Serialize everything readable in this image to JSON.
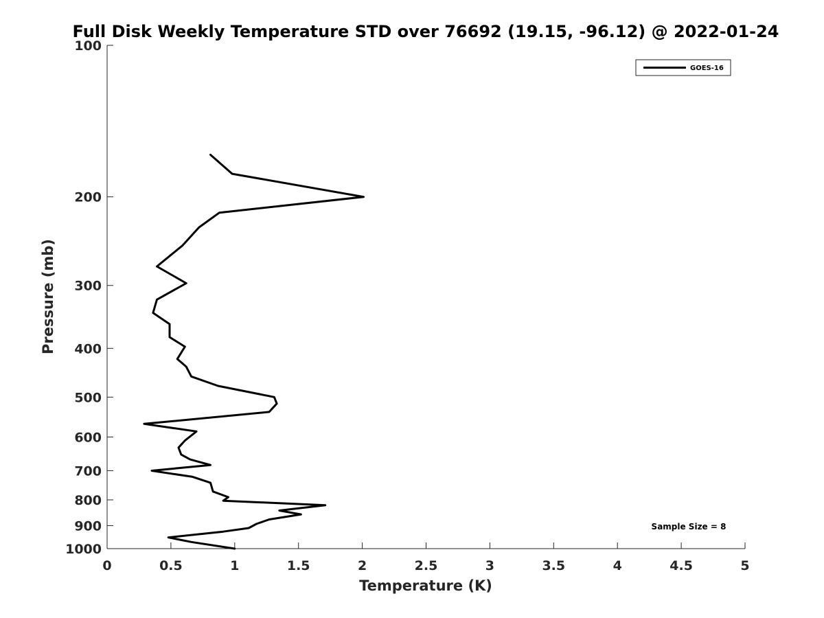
{
  "chart_data": {
    "type": "line",
    "title": "Full Disk Weekly Temperature STD over 76692 (19.15, -96.12) @ 2022-01-24",
    "xlabel": "Temperature (K)",
    "ylabel": "Pressure (mb)",
    "xlim": [
      0,
      5
    ],
    "ylim": [
      100,
      1000
    ],
    "y_scale": "log",
    "y_reversed": true,
    "x_ticks": [
      "0",
      "0.5",
      "1",
      "1.5",
      "2",
      "2.5",
      "3",
      "3.5",
      "4",
      "4.5",
      "5"
    ],
    "y_ticks": [
      "100",
      "200",
      "300",
      "400",
      "500",
      "600",
      "700",
      "800",
      "900",
      "1000"
    ],
    "grid": false,
    "legend_position": "top-right",
    "annotation": "Sample Size = 8",
    "series": [
      {
        "name": "GOES-16",
        "color": "#000000",
        "points": [
          [
            0.81,
            165
          ],
          [
            0.98,
            180
          ],
          [
            2.01,
            200
          ],
          [
            0.88,
            215
          ],
          [
            0.72,
            230
          ],
          [
            0.59,
            250
          ],
          [
            0.39,
            275
          ],
          [
            0.62,
            297
          ],
          [
            0.39,
            320
          ],
          [
            0.36,
            340
          ],
          [
            0.49,
            358
          ],
          [
            0.49,
            380
          ],
          [
            0.61,
            397
          ],
          [
            0.55,
            420
          ],
          [
            0.62,
            435
          ],
          [
            0.66,
            455
          ],
          [
            0.87,
            475
          ],
          [
            1.31,
            500
          ],
          [
            1.33,
            515
          ],
          [
            1.27,
            535
          ],
          [
            0.29,
            565
          ],
          [
            0.7,
            585
          ],
          [
            0.61,
            610
          ],
          [
            0.56,
            630
          ],
          [
            0.58,
            650
          ],
          [
            0.65,
            665
          ],
          [
            0.81,
            682
          ],
          [
            0.35,
            700
          ],
          [
            0.67,
            720
          ],
          [
            0.81,
            740
          ],
          [
            0.83,
            770
          ],
          [
            0.95,
            790
          ],
          [
            0.91,
            803
          ],
          [
            1.71,
            820
          ],
          [
            1.35,
            840
          ],
          [
            1.52,
            855
          ],
          [
            1.27,
            875
          ],
          [
            1.17,
            893
          ],
          [
            1.11,
            910
          ],
          [
            0.91,
            925
          ],
          [
            0.48,
            950
          ],
          [
            0.66,
            970
          ],
          [
            1.0,
            1000
          ]
        ]
      }
    ]
  }
}
